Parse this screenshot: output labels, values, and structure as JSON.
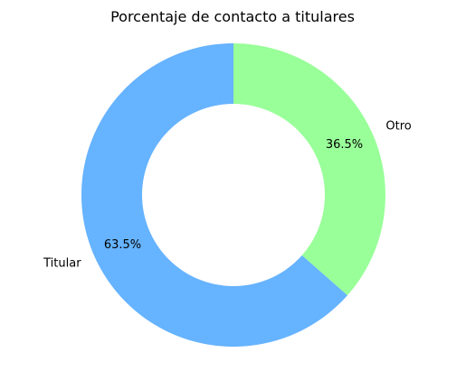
{
  "chart_data": {
    "type": "pie",
    "style": "donut",
    "title": "Porcentaje de contacto a titulares",
    "categories": [
      "Titular",
      "Otro"
    ],
    "values": [
      63.5,
      36.5
    ],
    "value_labels": [
      "63.5%",
      "36.5%"
    ],
    "colors": [
      "#66b3ff",
      "#99ff99"
    ],
    "start": "top",
    "direction": "counterclockwise",
    "hole_color": "#ffffff"
  }
}
